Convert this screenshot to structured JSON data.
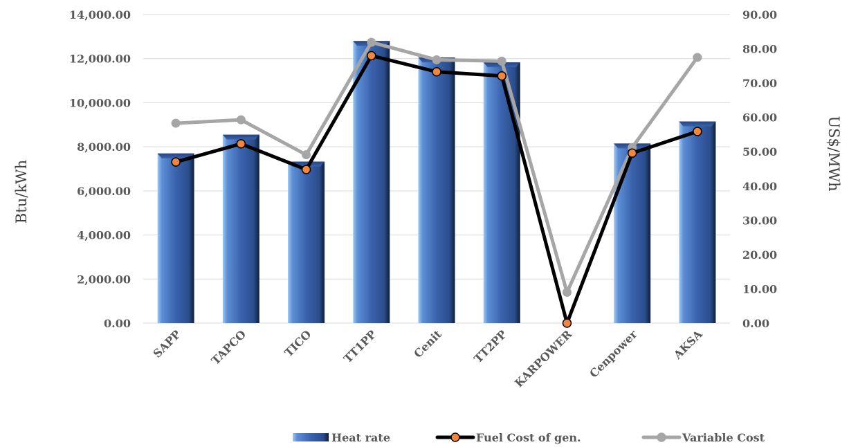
{
  "chart_data": {
    "type": "bar",
    "categories": [
      "SAPP",
      "TAPCO",
      "TICO",
      "TT1PP",
      "Cenit",
      "TT2PP",
      "KARPOWER",
      "Cenpower",
      "AKSA"
    ],
    "y_left": {
      "label": "Btu/kWh",
      "ylim": [
        0,
        14000
      ],
      "ticks": [
        "0.00",
        "2,000.00",
        "4,000.00",
        "6,000.00",
        "8,000.00",
        "10,000.00",
        "12,000.00",
        "14,000.00"
      ]
    },
    "y_right": {
      "label": "US$/MWh",
      "ylim": [
        0,
        90
      ],
      "ticks": [
        "0.00",
        "10.00",
        "20.00",
        "30.00",
        "40.00",
        "50.00",
        "60.00",
        "70.00",
        "80.00",
        "90.00"
      ]
    },
    "series": [
      {
        "name": "Heat rate",
        "type": "bar",
        "axis": "left",
        "color": "#3a62ad",
        "values": [
          7700,
          8550,
          7330,
          12800,
          12050,
          11830,
          0,
          8150,
          9150
        ]
      },
      {
        "name": "Fuel Cost of gen.",
        "type": "line",
        "axis": "right",
        "color": "#000000",
        "marker_color": "#f4853b",
        "values": [
          47.0,
          52.3,
          44.8,
          78.0,
          73.3,
          72.1,
          0.0,
          49.6,
          55.9
        ]
      },
      {
        "name": "Variable Cost",
        "type": "line",
        "axis": "right",
        "color": "#a6a6a6",
        "values": [
          58.3,
          59.3,
          49.1,
          81.9,
          76.8,
          76.4,
          9.0,
          51.2,
          77.5
        ]
      }
    ],
    "grid": true,
    "legend_position": "bottom-right"
  }
}
